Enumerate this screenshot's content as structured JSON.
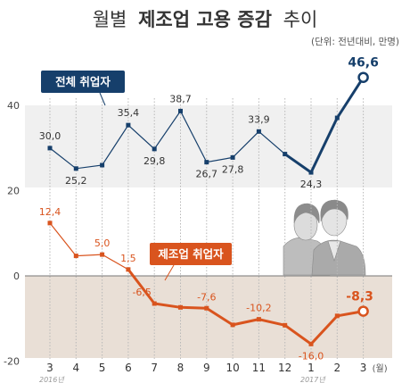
{
  "title_light": "월별",
  "title_bold": "제조업 고용 증감",
  "title_end": "추이",
  "unit_note": "(단위: 전년대비, 만명)",
  "colors": {
    "total": "#163f6b",
    "manufacturing": "#d9541e",
    "top_band": "#f0f0f0",
    "neg_band": "#e9dfd6",
    "grid": "#b8b8b8"
  },
  "chart_data": {
    "type": "line",
    "categories": [
      "3",
      "4",
      "5",
      "6",
      "7",
      "8",
      "9",
      "10",
      "11",
      "12",
      "1",
      "2",
      "3"
    ],
    "year_labels": [
      "2016년",
      "2017년"
    ],
    "unit_suffix": "(월)",
    "ylim": [
      -20,
      50
    ],
    "yticks": [
      "40",
      "20",
      "0",
      "-20"
    ],
    "series": [
      {
        "name": "전체 취업자",
        "values": [
          30.0,
          25.2,
          26.0,
          35.4,
          29.8,
          38.7,
          26.7,
          27.8,
          33.9,
          28.6,
          24.3,
          37.1,
          46.6
        ],
        "labels": [
          "30,0",
          "25,2",
          "",
          "35,4",
          "29,8",
          "38,7",
          "26,7",
          "27,8",
          "33,9",
          "",
          "24,3",
          "",
          "46,6"
        ]
      },
      {
        "name": "제조업 취업자",
        "values": [
          12.4,
          4.7,
          5.0,
          1.5,
          -6.5,
          -7.4,
          -7.6,
          -11.5,
          -10.2,
          -11.6,
          -16.0,
          -9.4,
          -8.3
        ],
        "labels": [
          "12,4",
          "",
          "5,0",
          "1,5",
          "-6,5",
          "",
          "-7,6",
          "",
          "-10,2",
          "",
          "-16,0",
          "",
          "-8,3"
        ]
      }
    ]
  }
}
